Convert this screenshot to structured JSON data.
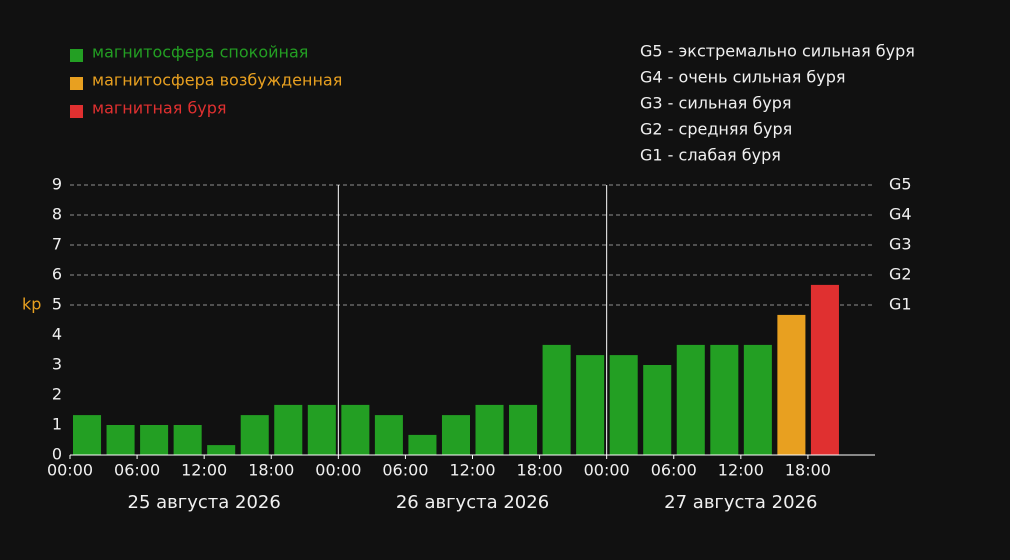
{
  "chart_data": {
    "type": "bar",
    "y_label": "kp",
    "y_label_color": "#e8a020",
    "xlim": [
      0,
      72
    ],
    "xticks": [
      {
        "value": 0,
        "label": "00:00"
      },
      {
        "value": 6,
        "label": "06:00"
      },
      {
        "value": 12,
        "label": "12:00"
      },
      {
        "value": 18,
        "label": "18:00"
      },
      {
        "value": 24,
        "label": "00:00"
      },
      {
        "value": 30,
        "label": "06:00"
      },
      {
        "value": 36,
        "label": "12:00"
      },
      {
        "value": 42,
        "label": "18:00"
      },
      {
        "value": 48,
        "label": "00:00"
      },
      {
        "value": 54,
        "label": "06:00"
      },
      {
        "value": 60,
        "label": "12:00"
      },
      {
        "value": 66,
        "label": "18:00"
      }
    ],
    "days": [
      "25 августа 2026",
      "26 августа 2026",
      "27 августа 2026"
    ],
    "x": [
      0,
      3,
      6,
      9,
      12,
      15,
      18,
      21,
      24,
      27,
      30,
      33,
      36,
      39,
      42,
      45,
      48,
      51,
      54,
      57,
      60,
      63,
      66
    ],
    "series": [
      {
        "name": "магнитосфера спокойная",
        "color": "#239f23",
        "values": [
          1.33,
          1,
          1,
          1,
          0.33,
          1.33,
          1.67,
          1.67,
          1.67,
          1.33,
          0.67,
          1.33,
          1.67,
          1.67,
          3.67,
          3.33,
          3.33,
          3,
          3.67,
          3.67,
          3.67,
          null,
          null
        ]
      },
      {
        "name": "магнитосфера возбужденная",
        "color": "#e8a020",
        "values": [
          null,
          null,
          null,
          null,
          null,
          null,
          null,
          null,
          null,
          null,
          null,
          null,
          null,
          null,
          null,
          null,
          null,
          null,
          null,
          null,
          null,
          4.67,
          null
        ]
      },
      {
        "name": "магнитная буря",
        "color": "#e03030",
        "values": [
          null,
          null,
          null,
          null,
          null,
          null,
          null,
          null,
          null,
          null,
          null,
          null,
          null,
          null,
          null,
          null,
          null,
          null,
          null,
          null,
          null,
          null,
          5.67
        ]
      }
    ],
    "ylim": [
      0,
      9
    ],
    "yticks": [
      0,
      1,
      2,
      3,
      4,
      5,
      6,
      7,
      8,
      9
    ],
    "y2lim": [
      0,
      9
    ],
    "y2ticks": [
      {
        "value": 5,
        "label": "G1"
      },
      {
        "value": 6,
        "label": "G2"
      },
      {
        "value": 7,
        "label": "G3"
      },
      {
        "value": 8,
        "label": "G4"
      },
      {
        "value": 9,
        "label": "G5"
      }
    ],
    "grid": true,
    "scale_legend": [
      "G5 - экстремально сильная буря",
      "G4 - очень сильная буря",
      "G3 - сильная буря",
      "G2 - средняя буря",
      "G1 - слабая буря"
    ]
  }
}
